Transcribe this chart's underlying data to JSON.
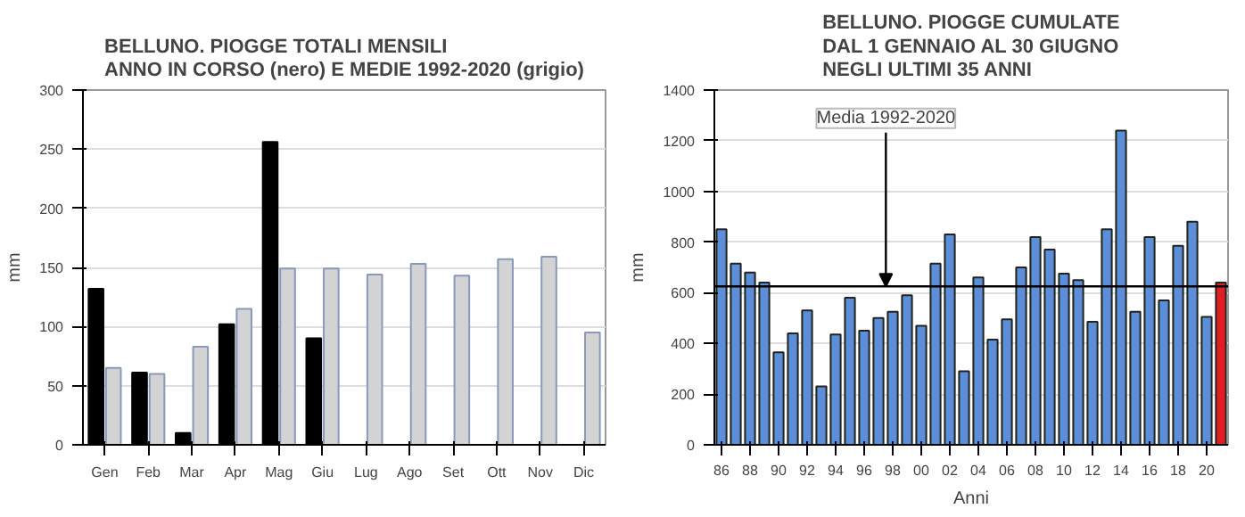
{
  "chart_data": [
    {
      "type": "bar",
      "title": "BELLUNO. PIOGGE TOTALI MENSILI\nANNO IN CORSO (nero) E MEDIE 1992-2020 (grigio)",
      "ylabel": "mm",
      "categories": [
        "Gen",
        "Feb",
        "Mar",
        "Apr",
        "Mag",
        "Giu",
        "Lug",
        "Ago",
        "Set",
        "Ott",
        "Nov",
        "Dic"
      ],
      "series": [
        {
          "color": "#000000",
          "values": [
            132,
            61,
            10,
            102,
            256,
            90,
            null,
            null,
            null,
            null,
            null,
            null
          ]
        },
        {
          "color": "#d3d3d3",
          "values": [
            65,
            60,
            83,
            115,
            149,
            149,
            144,
            153,
            143,
            157,
            159,
            95
          ]
        }
      ],
      "ylim": [
        0,
        300
      ],
      "yticks": [
        0,
        50,
        100,
        150,
        200,
        250,
        300
      ],
      "grid": "y"
    },
    {
      "type": "bar",
      "title": "BELLUNO. PIOGGE CUMULATE\nDAL 1 GENNAIO AL 30 GIUGNO\nNEGLI ULTIMI 35 ANNI",
      "xlabel": "Anni",
      "ylabel": "mm",
      "categories": [
        "86",
        null,
        "88",
        null,
        "90",
        null,
        "92",
        null,
        "94",
        null,
        "96",
        null,
        "98",
        null,
        "00",
        null,
        "02",
        null,
        "04",
        null,
        "06",
        null,
        "08",
        null,
        "10",
        null,
        "12",
        null,
        "14",
        null,
        "16",
        null,
        "18",
        null,
        "20",
        null
      ],
      "values": [
        850,
        715,
        680,
        640,
        365,
        440,
        530,
        230,
        435,
        580,
        450,
        500,
        525,
        590,
        470,
        715,
        830,
        290,
        660,
        415,
        495,
        700,
        820,
        770,
        675,
        650,
        485,
        850,
        1240,
        525,
        820,
        570,
        785,
        880,
        505,
        640
      ],
      "colors": [
        "#5b8fd8",
        "#5b8fd8",
        "#5b8fd8",
        "#5b8fd8",
        "#5b8fd8",
        "#5b8fd8",
        "#5b8fd8",
        "#5b8fd8",
        "#5b8fd8",
        "#5b8fd8",
        "#5b8fd8",
        "#5b8fd8",
        "#5b8fd8",
        "#5b8fd8",
        "#5b8fd8",
        "#5b8fd8",
        "#5b8fd8",
        "#5b8fd8",
        "#5b8fd8",
        "#5b8fd8",
        "#5b8fd8",
        "#5b8fd8",
        "#5b8fd8",
        "#5b8fd8",
        "#5b8fd8",
        "#5b8fd8",
        "#5b8fd8",
        "#5b8fd8",
        "#5b8fd8",
        "#5b8fd8",
        "#5b8fd8",
        "#5b8fd8",
        "#5b8fd8",
        "#5b8fd8",
        "#5b8fd8",
        "#e02020"
      ],
      "ref_lines": [
        {
          "axis": "y",
          "value": 625,
          "label": "Media 1992-2020",
          "color": "#000000"
        }
      ],
      "ylim": [
        0,
        1400
      ],
      "yticks": [
        0,
        200,
        400,
        600,
        800,
        1000,
        1200,
        1400
      ],
      "grid": "y"
    }
  ]
}
